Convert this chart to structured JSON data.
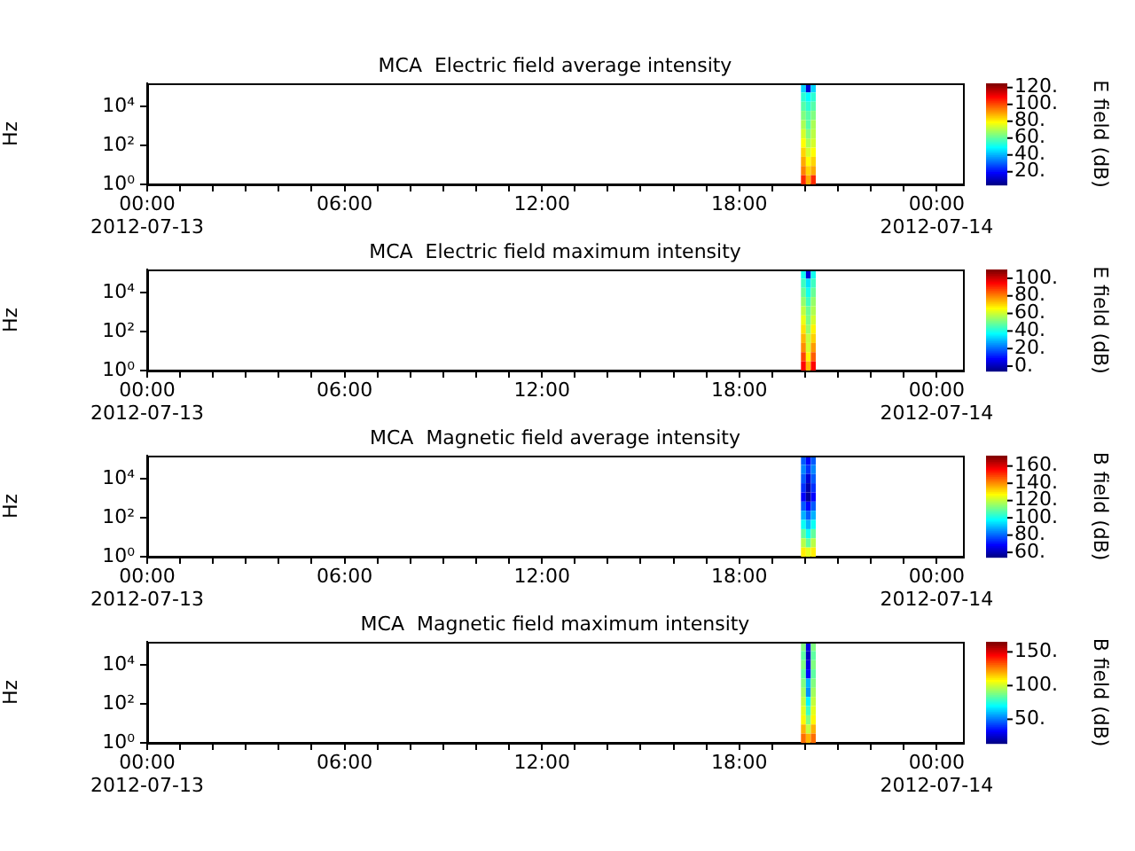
{
  "chart_data": [
    {
      "type": "heatmap",
      "title": "MCA  Electric field average intensity",
      "ylabel": "Hz",
      "clabel": "E field (dB)",
      "log": "y",
      "xlim": [
        "2012-07-13T00:00",
        "2012-07-14T00:48"
      ],
      "xticks": [
        {
          "value": "2012-07-13T00:00",
          "label": "00:00\n2012-07-13"
        },
        {
          "value": "2012-07-13T01:00",
          "label": null
        },
        {
          "value": "2012-07-13T02:00",
          "label": null
        },
        {
          "value": "2012-07-13T03:00",
          "label": null
        },
        {
          "value": "2012-07-13T04:00",
          "label": null
        },
        {
          "value": "2012-07-13T05:00",
          "label": null
        },
        {
          "value": "2012-07-13T06:00",
          "label": "06:00"
        },
        {
          "value": "2012-07-13T07:00",
          "label": null
        },
        {
          "value": "2012-07-13T08:00",
          "label": null
        },
        {
          "value": "2012-07-13T09:00",
          "label": null
        },
        {
          "value": "2012-07-13T10:00",
          "label": null
        },
        {
          "value": "2012-07-13T11:00",
          "label": null
        },
        {
          "value": "2012-07-13T12:00",
          "label": "12:00"
        },
        {
          "value": "2012-07-13T13:00",
          "label": null
        },
        {
          "value": "2012-07-13T14:00",
          "label": null
        },
        {
          "value": "2012-07-13T15:00",
          "label": null
        },
        {
          "value": "2012-07-13T16:00",
          "label": null
        },
        {
          "value": "2012-07-13T17:00",
          "label": null
        },
        {
          "value": "2012-07-13T18:00",
          "label": "18:00"
        },
        {
          "value": "2012-07-13T19:00",
          "label": null
        },
        {
          "value": "2012-07-13T20:00",
          "label": null
        },
        {
          "value": "2012-07-13T21:00",
          "label": null
        },
        {
          "value": "2012-07-13T22:00",
          "label": null
        },
        {
          "value": "2012-07-13T23:00",
          "label": null
        },
        {
          "value": "2012-07-14T00:00",
          "label": "00:00\n2012-07-14"
        }
      ],
      "ylim": [
        1,
        160000
      ],
      "yticks": [
        {
          "value": 1,
          "label": "10⁰"
        },
        {
          "value": 100,
          "label": "10²"
        },
        {
          "value": 10000,
          "label": "10⁴"
        }
      ],
      "x": [
        "2012-07-13T19:57",
        "2012-07-13T20:06",
        "2012-07-13T20:15"
      ],
      "cells": [
        [
          45,
          15,
          45
        ],
        [
          55,
          50,
          55
        ],
        [
          60,
          55,
          60
        ],
        [
          65,
          60,
          65
        ],
        [
          70,
          60,
          70
        ],
        [
          75,
          65,
          72
        ],
        [
          80,
          70,
          75
        ],
        [
          85,
          75,
          80
        ],
        [
          90,
          80,
          85
        ],
        [
          95,
          85,
          90
        ],
        [
          105,
          90,
          105
        ]
      ],
      "clim": [
        5,
        125
      ],
      "cticks": [
        {
          "value": 20,
          "label": "20."
        },
        {
          "value": 40,
          "label": "40."
        },
        {
          "value": 60,
          "label": "60."
        },
        {
          "value": 80,
          "label": "80."
        },
        {
          "value": 100,
          "label": "100."
        },
        {
          "value": 120,
          "label": "120."
        }
      ]
    },
    {
      "type": "heatmap",
      "title": "MCA  Electric field maximum intensity",
      "ylabel": "Hz",
      "clabel": "E field (dB)",
      "log": "y",
      "xlim": [
        "2012-07-13T00:00",
        "2012-07-14T00:48"
      ],
      "xticks": [
        {
          "value": "2012-07-13T00:00",
          "label": "00:00\n2012-07-13"
        },
        {
          "value": "2012-07-13T01:00",
          "label": null
        },
        {
          "value": "2012-07-13T02:00",
          "label": null
        },
        {
          "value": "2012-07-13T03:00",
          "label": null
        },
        {
          "value": "2012-07-13T04:00",
          "label": null
        },
        {
          "value": "2012-07-13T05:00",
          "label": null
        },
        {
          "value": "2012-07-13T06:00",
          "label": "06:00"
        },
        {
          "value": "2012-07-13T07:00",
          "label": null
        },
        {
          "value": "2012-07-13T08:00",
          "label": null
        },
        {
          "value": "2012-07-13T09:00",
          "label": null
        },
        {
          "value": "2012-07-13T10:00",
          "label": null
        },
        {
          "value": "2012-07-13T11:00",
          "label": null
        },
        {
          "value": "2012-07-13T12:00",
          "label": "12:00"
        },
        {
          "value": "2012-07-13T13:00",
          "label": null
        },
        {
          "value": "2012-07-13T14:00",
          "label": null
        },
        {
          "value": "2012-07-13T15:00",
          "label": null
        },
        {
          "value": "2012-07-13T16:00",
          "label": null
        },
        {
          "value": "2012-07-13T17:00",
          "label": null
        },
        {
          "value": "2012-07-13T18:00",
          "label": "18:00"
        },
        {
          "value": "2012-07-13T19:00",
          "label": null
        },
        {
          "value": "2012-07-13T20:00",
          "label": null
        },
        {
          "value": "2012-07-13T21:00",
          "label": null
        },
        {
          "value": "2012-07-13T22:00",
          "label": null
        },
        {
          "value": "2012-07-13T23:00",
          "label": null
        },
        {
          "value": "2012-07-14T00:00",
          "label": "00:00\n2012-07-14"
        }
      ],
      "ylim": [
        1,
        160000
      ],
      "yticks": [
        {
          "value": 1,
          "label": "10⁰"
        },
        {
          "value": 100,
          "label": "10²"
        },
        {
          "value": 10000,
          "label": "10⁴"
        }
      ],
      "x": [
        "2012-07-13T19:57",
        "2012-07-13T20:06",
        "2012-07-13T20:15"
      ],
      "cells": [
        [
          40,
          5,
          40
        ],
        [
          45,
          35,
          45
        ],
        [
          50,
          40,
          50
        ],
        [
          55,
          45,
          55
        ],
        [
          60,
          50,
          58
        ],
        [
          65,
          52,
          62
        ],
        [
          70,
          55,
          68
        ],
        [
          75,
          60,
          72
        ],
        [
          80,
          62,
          78
        ],
        [
          88,
          68,
          85
        ],
        [
          95,
          75,
          95
        ]
      ],
      "clim": [
        -5,
        110
      ],
      "cticks": [
        {
          "value": 0,
          "label": "0."
        },
        {
          "value": 20,
          "label": "20."
        },
        {
          "value": 40,
          "label": "40."
        },
        {
          "value": 60,
          "label": "60."
        },
        {
          "value": 80,
          "label": "80."
        },
        {
          "value": 100,
          "label": "100."
        }
      ]
    },
    {
      "type": "heatmap",
      "title": "MCA  Magnetic field average intensity",
      "ylabel": "Hz",
      "clabel": "B field (dB)",
      "log": "y",
      "xlim": [
        "2012-07-13T00:00",
        "2012-07-14T00:48"
      ],
      "xticks": [
        {
          "value": "2012-07-13T00:00",
          "label": "00:00\n2012-07-13"
        },
        {
          "value": "2012-07-13T01:00",
          "label": null
        },
        {
          "value": "2012-07-13T02:00",
          "label": null
        },
        {
          "value": "2012-07-13T03:00",
          "label": null
        },
        {
          "value": "2012-07-13T04:00",
          "label": null
        },
        {
          "value": "2012-07-13T05:00",
          "label": null
        },
        {
          "value": "2012-07-13T06:00",
          "label": "06:00"
        },
        {
          "value": "2012-07-13T07:00",
          "label": null
        },
        {
          "value": "2012-07-13T08:00",
          "label": null
        },
        {
          "value": "2012-07-13T09:00",
          "label": null
        },
        {
          "value": "2012-07-13T10:00",
          "label": null
        },
        {
          "value": "2012-07-13T11:00",
          "label": null
        },
        {
          "value": "2012-07-13T12:00",
          "label": "12:00"
        },
        {
          "value": "2012-07-13T13:00",
          "label": null
        },
        {
          "value": "2012-07-13T14:00",
          "label": null
        },
        {
          "value": "2012-07-13T15:00",
          "label": null
        },
        {
          "value": "2012-07-13T16:00",
          "label": null
        },
        {
          "value": "2012-07-13T17:00",
          "label": null
        },
        {
          "value": "2012-07-13T18:00",
          "label": "18:00"
        },
        {
          "value": "2012-07-13T19:00",
          "label": null
        },
        {
          "value": "2012-07-13T20:00",
          "label": null
        },
        {
          "value": "2012-07-13T21:00",
          "label": null
        },
        {
          "value": "2012-07-13T22:00",
          "label": null
        },
        {
          "value": "2012-07-13T23:00",
          "label": null
        },
        {
          "value": "2012-07-14T00:00",
          "label": "00:00\n2012-07-14"
        }
      ],
      "ylim": [
        1,
        160000
      ],
      "yticks": [
        {
          "value": 1,
          "label": "10⁰"
        },
        {
          "value": 100,
          "label": "10²"
        },
        {
          "value": 10000,
          "label": "10⁴"
        }
      ],
      "x": [
        "2012-07-13T19:57",
        "2012-07-13T20:06",
        "2012-07-13T20:15"
      ],
      "cells": [
        [
          80,
          70,
          80
        ],
        [
          85,
          75,
          85
        ],
        [
          80,
          65,
          80
        ],
        [
          75,
          60,
          75
        ],
        [
          70,
          58,
          70
        ],
        [
          80,
          70,
          80
        ],
        [
          90,
          80,
          90
        ],
        [
          100,
          90,
          100
        ],
        [
          110,
          100,
          110
        ],
        [
          120,
          110,
          120
        ],
        [
          130,
          125,
          130
        ]
      ],
      "clim": [
        55,
        172
      ],
      "cticks": [
        {
          "value": 60,
          "label": "60."
        },
        {
          "value": 80,
          "label": "80."
        },
        {
          "value": 100,
          "label": "100."
        },
        {
          "value": 120,
          "label": "120."
        },
        {
          "value": 140,
          "label": "140."
        },
        {
          "value": 160,
          "label": "160."
        }
      ]
    },
    {
      "type": "heatmap",
      "title": "MCA  Magnetic field maximum intensity",
      "ylabel": "Hz",
      "clabel": "B field (dB)",
      "log": "y",
      "xlim": [
        "2012-07-13T00:00",
        "2012-07-14T00:48"
      ],
      "xticks": [
        {
          "value": "2012-07-13T00:00",
          "label": "00:00\n2012-07-13"
        },
        {
          "value": "2012-07-13T01:00",
          "label": null
        },
        {
          "value": "2012-07-13T02:00",
          "label": null
        },
        {
          "value": "2012-07-13T03:00",
          "label": null
        },
        {
          "value": "2012-07-13T04:00",
          "label": null
        },
        {
          "value": "2012-07-13T05:00",
          "label": null
        },
        {
          "value": "2012-07-13T06:00",
          "label": "06:00"
        },
        {
          "value": "2012-07-13T07:00",
          "label": null
        },
        {
          "value": "2012-07-13T08:00",
          "label": null
        },
        {
          "value": "2012-07-13T09:00",
          "label": null
        },
        {
          "value": "2012-07-13T10:00",
          "label": null
        },
        {
          "value": "2012-07-13T11:00",
          "label": null
        },
        {
          "value": "2012-07-13T12:00",
          "label": "12:00"
        },
        {
          "value": "2012-07-13T13:00",
          "label": null
        },
        {
          "value": "2012-07-13T14:00",
          "label": null
        },
        {
          "value": "2012-07-13T15:00",
          "label": null
        },
        {
          "value": "2012-07-13T16:00",
          "label": null
        },
        {
          "value": "2012-07-13T17:00",
          "label": null
        },
        {
          "value": "2012-07-13T18:00",
          "label": "18:00"
        },
        {
          "value": "2012-07-13T19:00",
          "label": null
        },
        {
          "value": "2012-07-13T20:00",
          "label": null
        },
        {
          "value": "2012-07-13T21:00",
          "label": null
        },
        {
          "value": "2012-07-13T22:00",
          "label": null
        },
        {
          "value": "2012-07-13T23:00",
          "label": null
        },
        {
          "value": "2012-07-14T00:00",
          "label": "00:00\n2012-07-14"
        }
      ],
      "ylim": [
        1,
        160000
      ],
      "yticks": [
        {
          "value": 1,
          "label": "10⁰"
        },
        {
          "value": 100,
          "label": "10²"
        },
        {
          "value": 10000,
          "label": "10⁴"
        }
      ],
      "x": [
        "2012-07-13T19:57",
        "2012-07-13T20:06",
        "2012-07-13T20:15"
      ],
      "cells": [
        [
          90,
          30,
          90
        ],
        [
          85,
          25,
          85
        ],
        [
          90,
          30,
          90
        ],
        [
          85,
          35,
          85
        ],
        [
          90,
          60,
          90
        ],
        [
          95,
          55,
          95
        ],
        [
          100,
          70,
          100
        ],
        [
          105,
          80,
          105
        ],
        [
          110,
          90,
          110
        ],
        [
          120,
          100,
          120
        ],
        [
          130,
          120,
          130
        ]
      ],
      "clim": [
        15,
        165
      ],
      "cticks": [
        {
          "value": 50,
          "label": "50."
        },
        {
          "value": 100,
          "label": "100."
        },
        {
          "value": 150,
          "label": "150."
        }
      ]
    }
  ]
}
